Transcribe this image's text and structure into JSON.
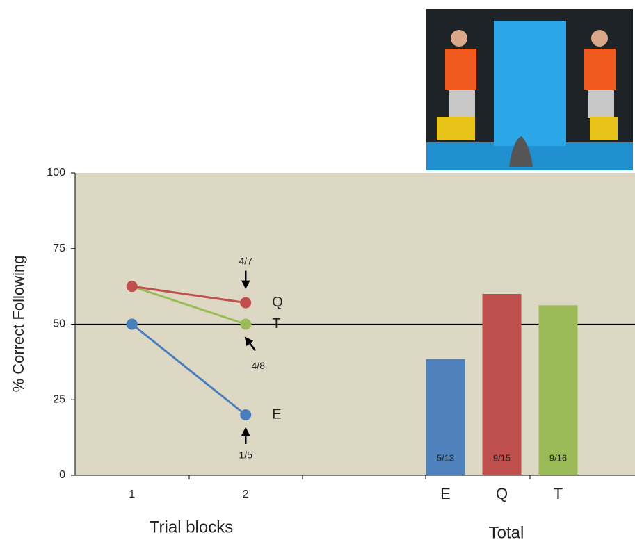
{
  "chart_data": [
    {
      "type": "line",
      "xlabel": "Trial blocks",
      "ylabel": "% Correct Following",
      "categories": [
        "1",
        "2"
      ],
      "series": [
        {
          "name": "E",
          "color": "#4a7ebb",
          "values": [
            50,
            20
          ],
          "value_labels": [
            null,
            "1/5"
          ]
        },
        {
          "name": "T",
          "color": "#9bbb59",
          "values": [
            62.5,
            50
          ],
          "value_labels": [
            null,
            "4/8"
          ]
        },
        {
          "name": "Q",
          "color": "#c0504d",
          "values": [
            62.5,
            57.1
          ],
          "value_labels": [
            null,
            "4/7"
          ]
        }
      ],
      "ylim": [
        0,
        100
      ],
      "yticks": [
        0,
        25,
        50,
        75,
        100
      ],
      "reference_line": 50
    },
    {
      "type": "bar",
      "xlabel": "Total",
      "categories": [
        "E",
        "Q",
        "T"
      ],
      "values": [
        38.46,
        60,
        56.25
      ],
      "value_labels": [
        "5/13",
        "9/15",
        "9/16"
      ],
      "colors": [
        "#4f81bd",
        "#c0504d",
        "#9bbb59"
      ],
      "ylim": [
        0,
        100
      ]
    }
  ]
}
